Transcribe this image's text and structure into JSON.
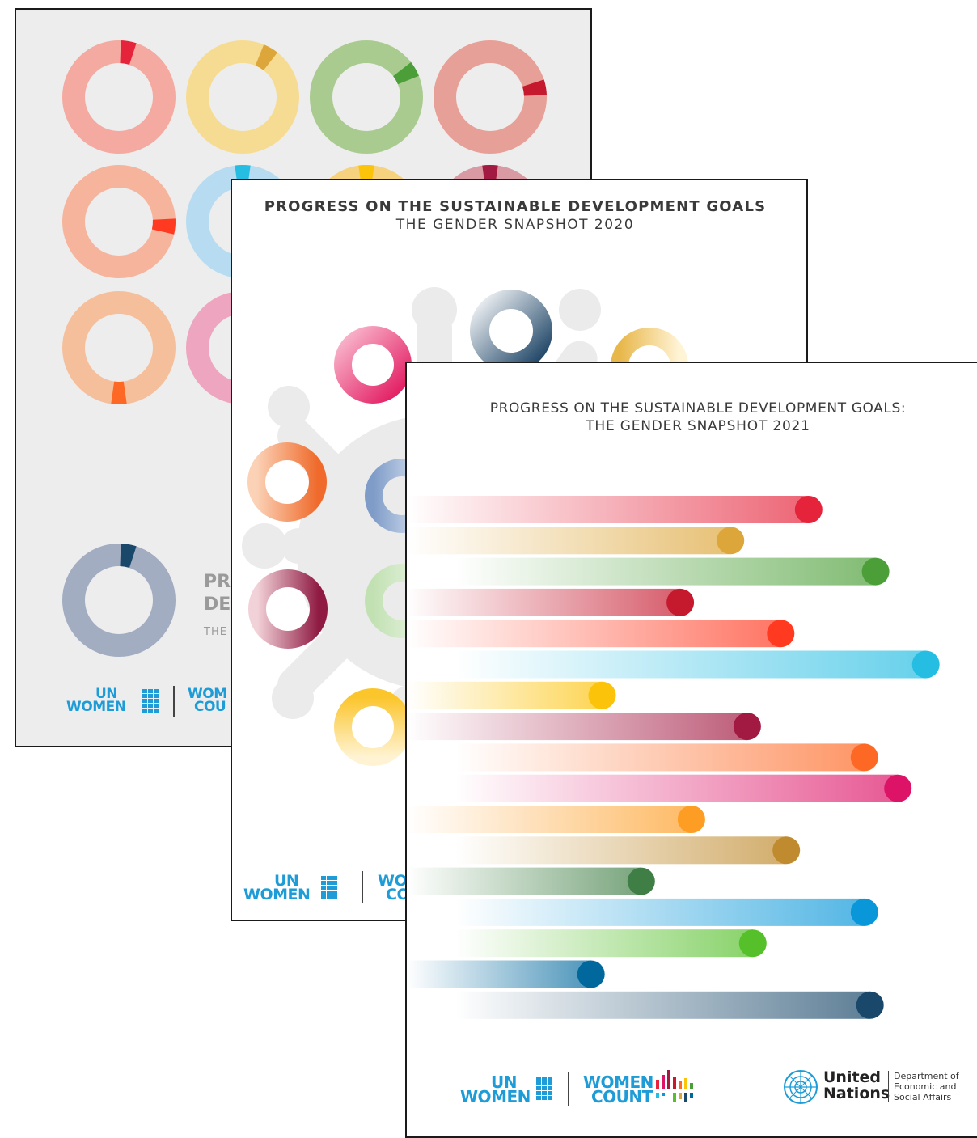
{
  "covers": [
    {
      "id": "gender-snapshot-2019",
      "partial_title_visible": [
        "PR",
        "DE"
      ],
      "partial_subtitle_visible": "THE",
      "logos": [
        "UN WOMEN",
        "WOMEN COUNT"
      ],
      "logo_partial": [
        "WOM",
        "COU"
      ],
      "donut_colors": [
        "#f4aaa0",
        "#f6dc92",
        "#a9cb8f",
        "#e7a097",
        "#f6b49c",
        "#b7dcf1",
        "#f6d27e",
        "#d99aa4",
        "#f6bf9c",
        "#eea5bf",
        "#b9ccb1",
        "#a8cbe9",
        "#a2adc2"
      ]
    },
    {
      "id": "gender-snapshot-2020",
      "title_line1": "PROGRESS ON THE SUSTAINABLE DEVELOPMENT GOALS",
      "title_line2": "THE GENDER SNAPSHOT 2020",
      "logo_partial": [
        "WO",
        "CO"
      ]
    },
    {
      "id": "gender-snapshot-2021",
      "title_line1": "PROGRESS ON THE SUSTAINABLE DEVELOPMENT GOALS:",
      "title_line2": "THE GENDER SNAPSHOT 2021",
      "bars": [
        {
          "color": "#e5243b",
          "value": 0.72
        },
        {
          "color": "#dda63a",
          "value": 0.58
        },
        {
          "color": "#4c9f38",
          "value": 0.84
        },
        {
          "color": "#c5192d",
          "value": 0.49
        },
        {
          "color": "#ff3a21",
          "value": 0.67
        },
        {
          "color": "#26bde2",
          "value": 0.93
        },
        {
          "color": "#fcc30b",
          "value": 0.35
        },
        {
          "color": "#a21942",
          "value": 0.61
        },
        {
          "color": "#fd6925",
          "value": 0.82
        },
        {
          "color": "#dd1367",
          "value": 0.88
        },
        {
          "color": "#fd9d24",
          "value": 0.51
        },
        {
          "color": "#bf8b2e",
          "value": 0.68
        },
        {
          "color": "#3f7e44",
          "value": 0.42
        },
        {
          "color": "#0a97d9",
          "value": 0.82
        },
        {
          "color": "#56c02b",
          "value": 0.62
        },
        {
          "color": "#00689d",
          "value": 0.33
        },
        {
          "color": "#19486a",
          "value": 0.83
        }
      ]
    }
  ],
  "footer": {
    "un_women_top": "UN",
    "un_women_bottom": "WOMEN",
    "women_count_top": "WOMEN",
    "women_count_bottom": "COUNT",
    "un_name_line1": "United",
    "un_name_line2": "Nations",
    "desa_line1": "Department of",
    "desa_line2": "Economic and",
    "desa_line3": "Social Affairs"
  }
}
